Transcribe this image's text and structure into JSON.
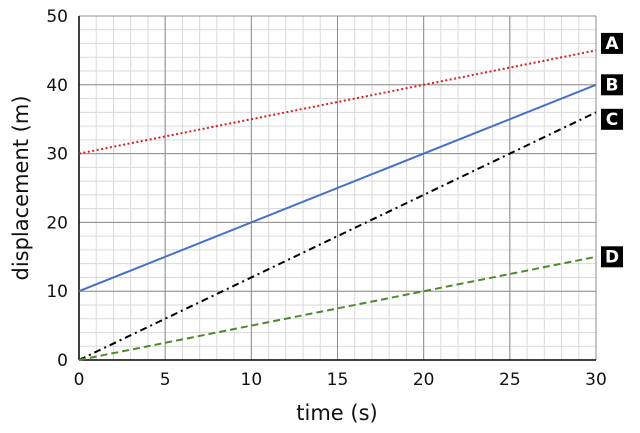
{
  "chart_data": {
    "type": "line",
    "xlabel": "time (s)",
    "ylabel": "displacement (m)",
    "xlim": [
      0,
      30
    ],
    "ylim": [
      0,
      50
    ],
    "x_ticks": [
      0,
      5,
      10,
      15,
      20,
      25,
      30
    ],
    "y_ticks": [
      0,
      10,
      20,
      30,
      40,
      50
    ],
    "x_minor_step": 1,
    "y_minor_step": 2,
    "grid": true,
    "series": [
      {
        "name": "A",
        "x": [
          0,
          30
        ],
        "y": [
          30,
          45
        ],
        "color": "#d62020",
        "dash": "dotted"
      },
      {
        "name": "B",
        "x": [
          0,
          30
        ],
        "y": [
          10,
          40
        ],
        "color": "#4472c4",
        "dash": "solid"
      },
      {
        "name": "C",
        "x": [
          0,
          30
        ],
        "y": [
          0,
          36
        ],
        "color": "#000000",
        "dash": "dashdot"
      },
      {
        "name": "D",
        "x": [
          0,
          30
        ],
        "y": [
          0,
          15
        ],
        "color": "#4e8a2c",
        "dash": "dashed"
      }
    ]
  }
}
